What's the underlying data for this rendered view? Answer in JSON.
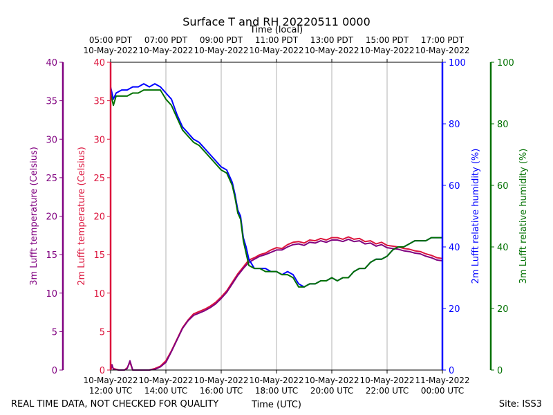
{
  "chart_data": {
    "type": "line",
    "title": "Surface T and RH 20220511 0000",
    "top_axis_label": "Time (local)",
    "xlabel": "Time (UTC)",
    "footer_left": "REAL TIME DATA, NOT CHECKED FOR QUALITY",
    "footer_right": "Site: ISS3",
    "x_hours_range": [
      12,
      24
    ],
    "grid": true,
    "bottom_ticks": [
      {
        "hour": 12,
        "line1": "10-May-2022",
        "line2": "12:00 UTC"
      },
      {
        "hour": 14,
        "line1": "10-May-2022",
        "line2": "14:00 UTC"
      },
      {
        "hour": 16,
        "line1": "10-May-2022",
        "line2": "16:00 UTC"
      },
      {
        "hour": 18,
        "line1": "10-May-2022",
        "line2": "18:00 UTC"
      },
      {
        "hour": 20,
        "line1": "10-May-2022",
        "line2": "20:00 UTC"
      },
      {
        "hour": 22,
        "line1": "10-May-2022",
        "line2": "22:00 UTC"
      },
      {
        "hour": 24,
        "line1": "11-May-2022",
        "line2": "00:00 UTC"
      }
    ],
    "top_ticks": [
      {
        "hour": 12,
        "line1": "05:00 PDT",
        "line2": "10-May-2022"
      },
      {
        "hour": 14,
        "line1": "07:00 PDT",
        "line2": "10-May-2022"
      },
      {
        "hour": 16,
        "line1": "09:00 PDT",
        "line2": "10-May-2022"
      },
      {
        "hour": 18,
        "line1": "11:00 PDT",
        "line2": "10-May-2022"
      },
      {
        "hour": 20,
        "line1": "13:00 PDT",
        "line2": "10-May-2022"
      },
      {
        "hour": 22,
        "line1": "15:00 PDT",
        "line2": "10-May-2022"
      },
      {
        "hour": 24,
        "line1": "17:00 PDT",
        "line2": "10-May-2022"
      }
    ],
    "axes": {
      "t3m": {
        "label": "3m Lufft temperature (Celsius)",
        "color": "#800080",
        "ylim": [
          0,
          40
        ],
        "ticks": [
          0,
          5,
          10,
          15,
          20,
          25,
          30,
          35,
          40
        ]
      },
      "t2m": {
        "label": "2m Lufft temperature (Celsius)",
        "color": "#dc143c",
        "ylim": [
          0,
          40
        ],
        "ticks": [
          0,
          5,
          10,
          15,
          20,
          25,
          30,
          35,
          40
        ]
      },
      "rh2m": {
        "label": "2m Lufft relative humidity (%)",
        "color": "#0000ff",
        "ylim": [
          0,
          100
        ],
        "ticks": [
          0,
          20,
          40,
          60,
          80,
          100
        ]
      },
      "rh3m": {
        "label": "3m Lufft relative humidity (%)",
        "color": "#007000",
        "ylim": [
          0,
          100
        ],
        "ticks": [
          0,
          20,
          40,
          60,
          80,
          100
        ]
      }
    },
    "series": [
      {
        "name": "2m Lufft temperature",
        "axis": "t2m",
        "color": "#dc143c",
        "x": [
          12.0,
          12.05,
          12.1,
          12.3,
          12.5,
          12.6,
          12.7,
          12.8,
          13.0,
          13.2,
          13.4,
          13.6,
          13.8,
          14.0,
          14.2,
          14.4,
          14.6,
          14.8,
          15.0,
          15.2,
          15.4,
          15.6,
          15.8,
          16.0,
          16.2,
          16.4,
          16.6,
          16.8,
          17.0,
          17.2,
          17.4,
          17.6,
          17.8,
          18.0,
          18.2,
          18.4,
          18.6,
          18.8,
          19.0,
          19.2,
          19.4,
          19.6,
          19.8,
          20.0,
          20.2,
          20.4,
          20.6,
          20.8,
          21.0,
          21.2,
          21.4,
          21.6,
          21.8,
          22.0,
          22.2,
          22.4,
          22.6,
          22.8,
          23.0,
          23.2,
          23.4,
          23.6,
          23.8,
          24.0
        ],
        "values": [
          0.0,
          0.5,
          0.2,
          0.0,
          0.0,
          0.3,
          1.0,
          0.0,
          0.0,
          0.0,
          0.0,
          0.2,
          0.5,
          1.2,
          2.5,
          4.0,
          5.5,
          6.5,
          7.3,
          7.6,
          7.9,
          8.3,
          8.8,
          9.5,
          10.3,
          11.4,
          12.5,
          13.4,
          14.3,
          14.6,
          15.0,
          15.2,
          15.6,
          15.9,
          15.8,
          16.3,
          16.6,
          16.7,
          16.5,
          16.9,
          16.8,
          17.1,
          16.9,
          17.2,
          17.2,
          17.0,
          17.3,
          17.0,
          17.1,
          16.7,
          16.8,
          16.4,
          16.6,
          16.2,
          16.1,
          16.0,
          15.8,
          15.7,
          15.5,
          15.4,
          15.1,
          14.9,
          14.6,
          14.5
        ]
      },
      {
        "name": "3m Lufft temperature",
        "axis": "t3m",
        "color": "#800080",
        "x": [
          12.0,
          12.05,
          12.1,
          12.3,
          12.5,
          12.6,
          12.7,
          12.8,
          13.0,
          13.2,
          13.4,
          13.6,
          13.8,
          14.0,
          14.2,
          14.4,
          14.6,
          14.8,
          15.0,
          15.2,
          15.4,
          15.6,
          15.8,
          16.0,
          16.2,
          16.4,
          16.6,
          16.8,
          17.0,
          17.2,
          17.4,
          17.6,
          17.8,
          18.0,
          18.2,
          18.4,
          18.6,
          18.8,
          19.0,
          19.2,
          19.4,
          19.6,
          19.8,
          20.0,
          20.2,
          20.4,
          20.6,
          20.8,
          21.0,
          21.2,
          21.4,
          21.6,
          21.8,
          22.0,
          22.2,
          22.4,
          22.6,
          22.8,
          23.0,
          23.2,
          23.4,
          23.6,
          23.8,
          24.0
        ],
        "values": [
          0.0,
          0.7,
          0.1,
          0.0,
          0.0,
          0.2,
          1.2,
          0.0,
          0.0,
          0.0,
          0.0,
          0.1,
          0.4,
          1.0,
          2.4,
          3.9,
          5.4,
          6.4,
          7.1,
          7.4,
          7.7,
          8.1,
          8.6,
          9.3,
          10.1,
          11.2,
          12.3,
          13.2,
          14.0,
          14.4,
          14.8,
          15.0,
          15.3,
          15.6,
          15.6,
          16.0,
          16.3,
          16.4,
          16.2,
          16.6,
          16.5,
          16.8,
          16.6,
          16.9,
          16.9,
          16.7,
          17.0,
          16.7,
          16.8,
          16.4,
          16.5,
          16.1,
          16.3,
          15.9,
          15.8,
          15.7,
          15.5,
          15.4,
          15.2,
          15.1,
          14.8,
          14.6,
          14.3,
          14.2
        ]
      },
      {
        "name": "2m Lufft relative humidity",
        "axis": "rh2m",
        "color": "#0000ff",
        "x": [
          12.0,
          12.1,
          12.2,
          12.4,
          12.6,
          12.8,
          13.0,
          13.2,
          13.4,
          13.6,
          13.8,
          14.0,
          14.2,
          14.4,
          14.6,
          14.8,
          15.0,
          15.2,
          15.4,
          15.6,
          15.8,
          16.0,
          16.2,
          16.4,
          16.5,
          16.6,
          16.7,
          16.8,
          16.9,
          17.0,
          17.2,
          17.4,
          17.6,
          17.8,
          18.0,
          18.2,
          18.4,
          18.6,
          18.8,
          19.0,
          19.2,
          19.4,
          19.6,
          19.8,
          20.0,
          20.2,
          20.4,
          20.6,
          20.8,
          21.0,
          21.2,
          21.4,
          21.6,
          21.8,
          22.0,
          22.2,
          22.4,
          22.6,
          22.8,
          23.0,
          23.2,
          23.4,
          23.6,
          23.8,
          24.0
        ],
        "values": [
          92,
          88,
          90,
          91,
          91,
          92,
          92,
          93,
          92,
          93,
          92,
          90,
          88,
          83,
          79,
          77,
          75,
          74,
          72,
          70,
          68,
          66,
          65,
          61,
          57,
          52,
          50,
          43,
          40,
          36,
          33,
          33,
          33,
          32,
          32,
          31,
          32,
          31,
          28,
          27,
          28,
          28,
          29,
          29,
          30,
          29,
          30,
          30,
          32,
          33,
          33,
          35,
          36,
          36,
          37,
          39,
          40,
          40,
          41,
          42,
          42,
          42,
          43,
          43,
          43
        ]
      },
      {
        "name": "3m Lufft relative humidity",
        "axis": "rh3m",
        "color": "#007000",
        "x": [
          12.0,
          12.1,
          12.2,
          12.4,
          12.6,
          12.8,
          13.0,
          13.2,
          13.4,
          13.6,
          13.8,
          14.0,
          14.2,
          14.4,
          14.6,
          14.8,
          15.0,
          15.2,
          15.4,
          15.6,
          15.8,
          16.0,
          16.2,
          16.4,
          16.5,
          16.6,
          16.7,
          16.8,
          16.9,
          17.0,
          17.2,
          17.4,
          17.6,
          17.8,
          18.0,
          18.2,
          18.4,
          18.6,
          18.8,
          19.0,
          19.2,
          19.4,
          19.6,
          19.8,
          20.0,
          20.2,
          20.4,
          20.6,
          20.8,
          21.0,
          21.2,
          21.4,
          21.6,
          21.8,
          22.0,
          22.2,
          22.4,
          22.6,
          22.8,
          23.0,
          23.2,
          23.4,
          23.6,
          23.8,
          24.0
        ],
        "values": [
          90,
          86,
          89,
          89,
          89,
          90,
          90,
          91,
          91,
          91,
          91,
          88,
          86,
          82,
          78,
          76,
          74,
          73,
          71,
          69,
          67,
          65,
          64,
          60,
          56,
          51,
          49,
          42,
          38,
          34,
          33,
          33,
          32,
          32,
          32,
          31,
          31,
          30,
          27,
          27,
          28,
          28,
          29,
          29,
          30,
          29,
          30,
          30,
          32,
          33,
          33,
          35,
          36,
          36,
          37,
          39,
          40,
          40,
          41,
          42,
          42,
          42,
          43,
          43,
          43
        ]
      }
    ]
  }
}
